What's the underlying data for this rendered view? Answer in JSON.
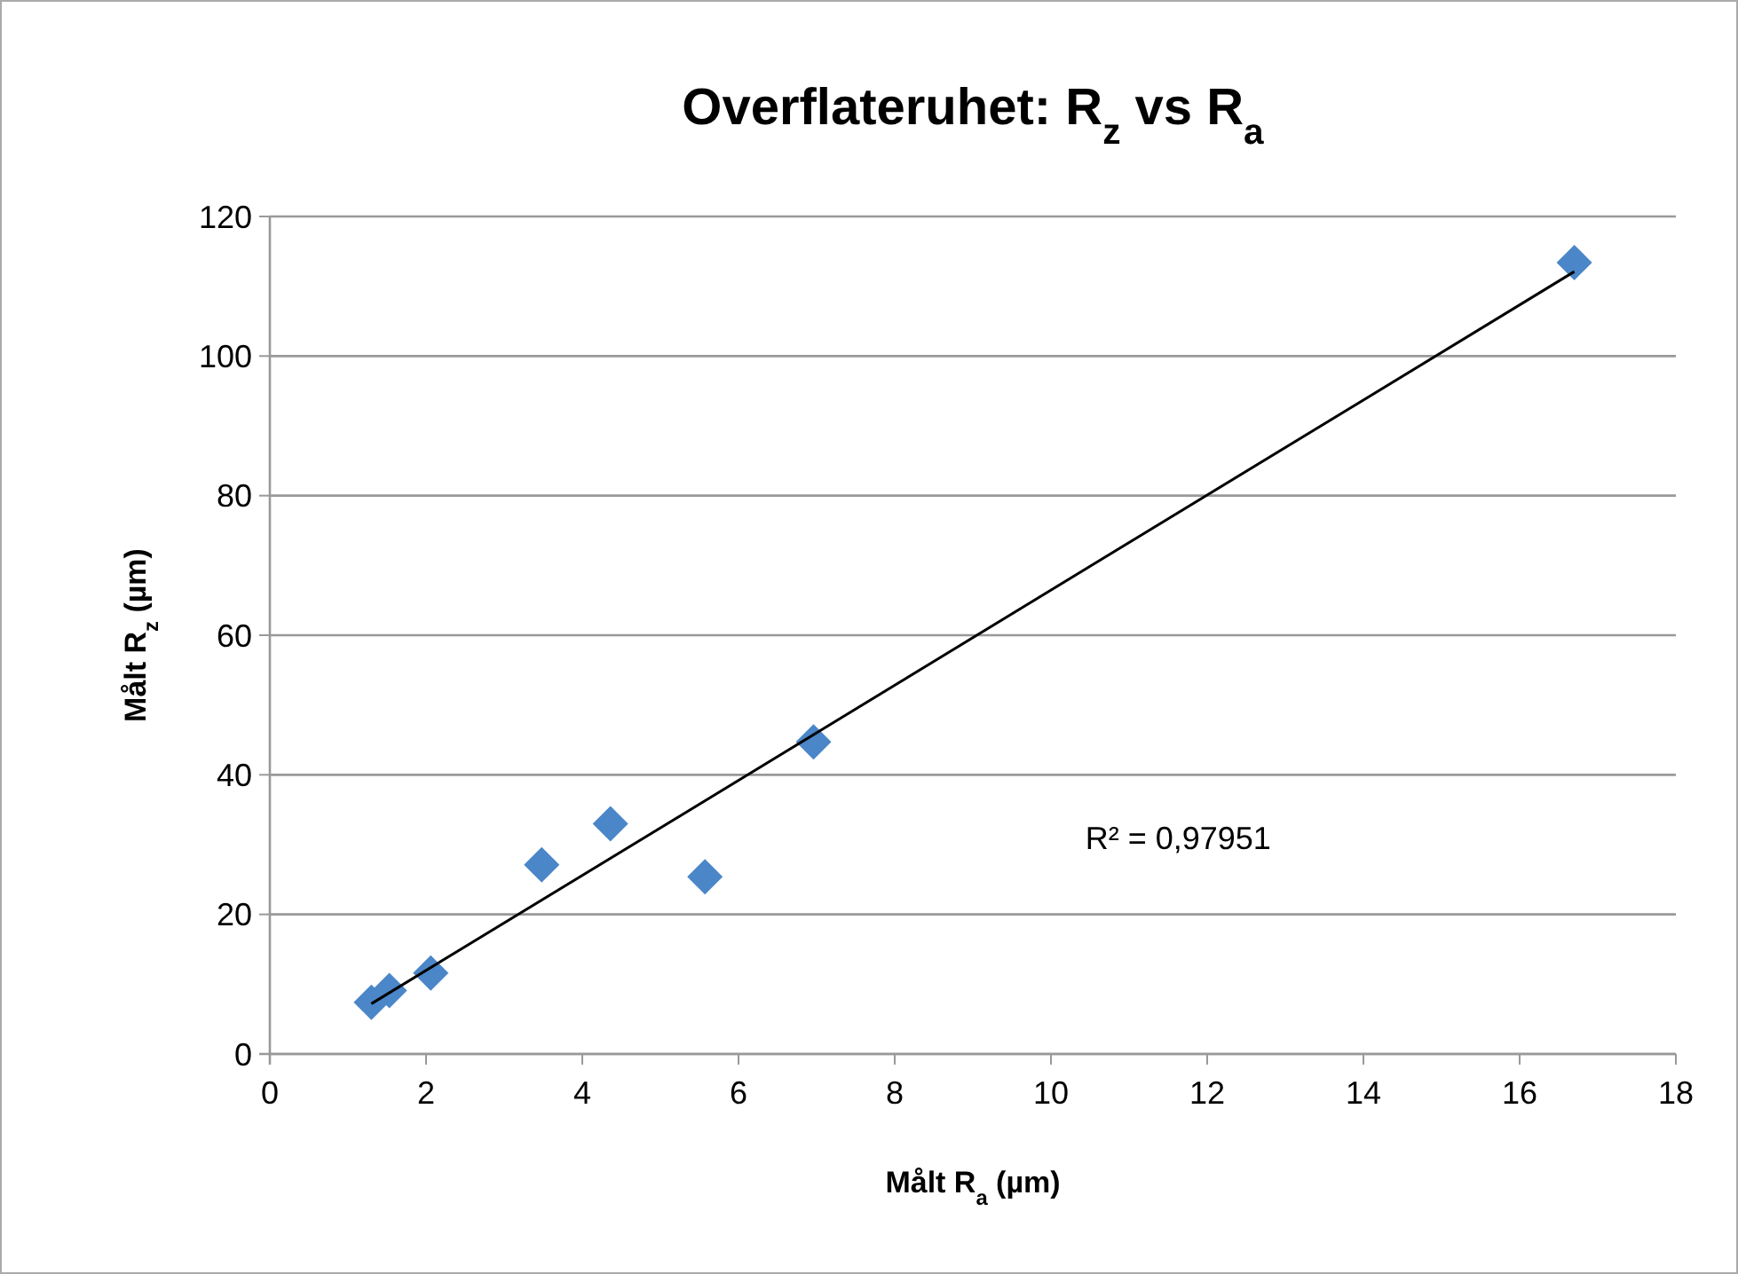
{
  "chart_data": {
    "type": "scatter",
    "title": "Overflateruhet: R$_{z}$ vs R$_{a}$",
    "xlabel": "Målt R$_{a}$ (µm)",
    "ylabel": "Målt R$_{z}$ (µm)",
    "xlim": [
      0,
      18
    ],
    "xticks": [
      0,
      2,
      4,
      6,
      8,
      10,
      12,
      14,
      16,
      18
    ],
    "ylim": [
      0,
      120
    ],
    "yticks": [
      0,
      20,
      40,
      60,
      80,
      100,
      120
    ],
    "grid": "y",
    "series": [
      {
        "marker": "diamond",
        "color": "#4a86c8",
        "x": [
          1.3,
          1.53,
          2.06,
          3.48,
          4.36,
          5.57,
          6.96,
          16.7
        ],
        "values": [
          7.4,
          9.1,
          11.6,
          27.1,
          33.0,
          25.4,
          44.7,
          113.4
        ]
      },
      {
        "type": "line",
        "color": "#000000",
        "x": [
          1.3,
          16.7
        ],
        "values": [
          7.2,
          112.1
        ]
      }
    ],
    "annotations": [
      "R² = 0,97951"
    ]
  }
}
